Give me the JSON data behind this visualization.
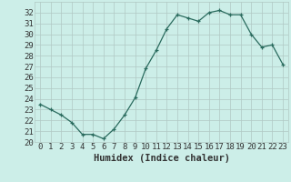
{
  "title": "",
  "xlabel": "Humidex (Indice chaleur)",
  "x": [
    0,
    1,
    2,
    3,
    4,
    5,
    6,
    7,
    8,
    9,
    10,
    11,
    12,
    13,
    14,
    15,
    16,
    17,
    18,
    19,
    20,
    21,
    22,
    23
  ],
  "y": [
    23.5,
    23.0,
    22.5,
    21.8,
    20.7,
    20.7,
    20.3,
    21.2,
    22.5,
    24.1,
    26.8,
    28.5,
    30.5,
    31.8,
    31.5,
    31.2,
    32.0,
    32.2,
    31.8,
    31.8,
    30.0,
    28.8,
    29.0,
    27.2
  ],
  "ylim": [
    20,
    33
  ],
  "xlim": [
    -0.5,
    23.5
  ],
  "yticks": [
    20,
    21,
    22,
    23,
    24,
    25,
    26,
    27,
    28,
    29,
    30,
    31,
    32
  ],
  "line_color": "#2a6b5e",
  "marker": "+",
  "bg_color": "#cceee8",
  "grid_color": "#b0c8c4",
  "font_color": "#333333",
  "tick_fontsize": 6.5,
  "label_fontsize": 7.5
}
